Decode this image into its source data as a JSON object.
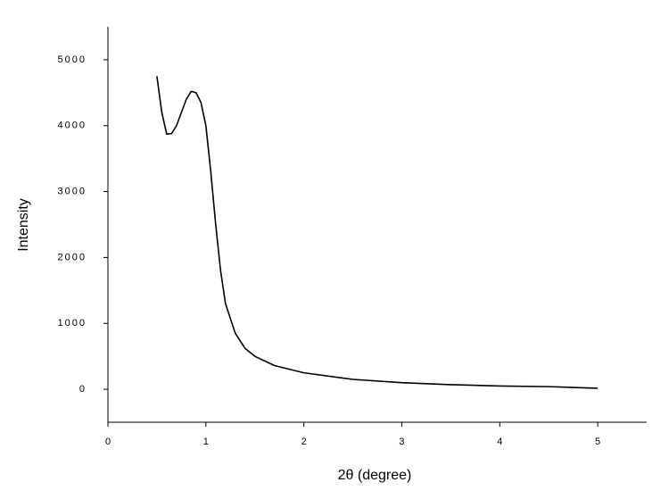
{
  "chart_data": {
    "type": "line",
    "xlabel": "2θ (degree)",
    "ylabel": "Intensity",
    "x": [
      0.5,
      0.55,
      0.6,
      0.65,
      0.7,
      0.75,
      0.8,
      0.85,
      0.9,
      0.95,
      1.0,
      1.05,
      1.1,
      1.15,
      1.2,
      1.3,
      1.4,
      1.5,
      1.7,
      2.0,
      2.5,
      3.0,
      3.5,
      4.0,
      4.5,
      5.0
    ],
    "series": [
      {
        "color": "#000000",
        "values": [
          4750,
          4200,
          3870,
          3880,
          4000,
          4200,
          4400,
          4520,
          4500,
          4350,
          4000,
          3300,
          2500,
          1800,
          1300,
          850,
          620,
          500,
          360,
          250,
          150,
          100,
          70,
          50,
          40,
          15
        ]
      }
    ],
    "xlim": [
      0,
      5.5
    ],
    "xticks": [
      0,
      1,
      2,
      3,
      4,
      5
    ],
    "ylim": [
      -500,
      5500
    ],
    "yticks": [
      0,
      1000,
      2000,
      3000,
      4000,
      5000
    ],
    "grid": false
  }
}
